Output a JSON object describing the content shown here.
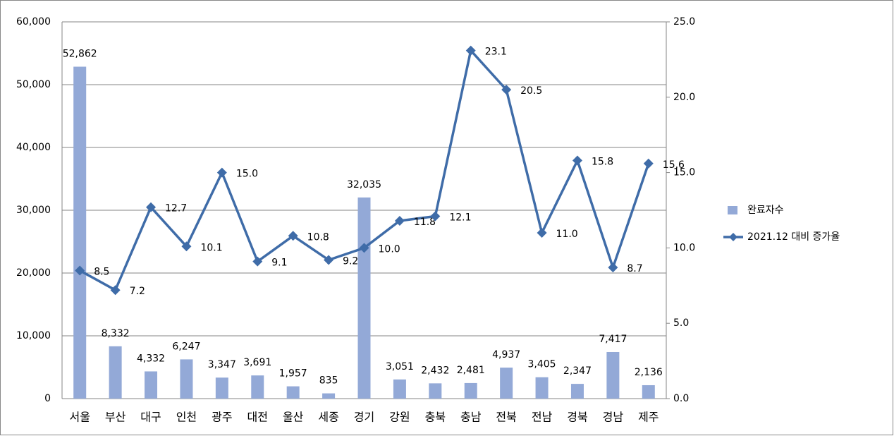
{
  "chart_data": {
    "type": "combo",
    "categories": [
      "서울",
      "부산",
      "대구",
      "인천",
      "광주",
      "대전",
      "울산",
      "세종",
      "경기",
      "강원",
      "충북",
      "충남",
      "전북",
      "전남",
      "경북",
      "경남",
      "제주"
    ],
    "series": [
      {
        "name": "완료자수",
        "type": "bar",
        "color": "#93a9d7",
        "values": [
          52862,
          8332,
          4332,
          6247,
          3347,
          3691,
          1957,
          835,
          32035,
          3051,
          2432,
          2481,
          4937,
          3405,
          2347,
          7417,
          2136
        ],
        "value_labels": [
          "52,862",
          "8,332",
          "4,332",
          "6,247",
          "3,347",
          "3,691",
          "1,957",
          "835",
          "32,035",
          "3,051",
          "2,432",
          "2,481",
          "4,937",
          "3,405",
          "2,347",
          "7,417",
          "2,136"
        ]
      },
      {
        "name": "2021.12 대비 증가율",
        "type": "line",
        "axis": "y2",
        "color": "#3f6ca8",
        "values": [
          8.5,
          7.2,
          12.7,
          10.1,
          15.0,
          9.1,
          10.8,
          9.2,
          10.0,
          11.8,
          12.1,
          23.1,
          20.5,
          11.0,
          15.8,
          8.7,
          15.6
        ],
        "value_labels": [
          "8.5",
          "7.2",
          "12.7",
          "10.1",
          "15.0",
          "9.1",
          "10.8",
          "9.2",
          "10.0",
          "11.8",
          "12.1",
          "23.1",
          "20.5",
          "11.0",
          "15.8",
          "8.7",
          "15.6"
        ]
      }
    ],
    "ylim": [
      0,
      60000
    ],
    "yticks": [
      0,
      {
        "value": 10000,
        "label": "10,000"
      },
      {
        "value": 20000,
        "label": "20,000"
      },
      {
        "value": 30000,
        "label": "30,000"
      },
      {
        "value": 40000,
        "label": "40,000"
      },
      {
        "value": 50000,
        "label": "50,000"
      },
      {
        "value": 60000,
        "label": "60,000"
      }
    ],
    "y2lim": [
      0,
      25
    ],
    "y2ticks": [
      {
        "value": 0,
        "label": "0.0"
      },
      {
        "value": 5,
        "label": "5.0"
      },
      {
        "value": 10,
        "label": "10.0"
      },
      {
        "value": 15,
        "label": "15.0"
      },
      {
        "value": 20,
        "label": "20.0"
      },
      {
        "value": 25,
        "label": "25.0"
      }
    ],
    "grid": true,
    "legend": "right"
  }
}
